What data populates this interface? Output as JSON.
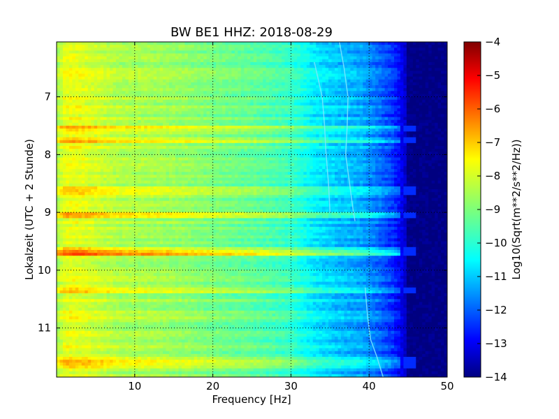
{
  "chart_data": {
    "type": "heatmap",
    "title": "BW BE1 HHZ: 2018-08-29",
    "xlabel": "Frequency [Hz]",
    "ylabel": "Lokalzeit (UTC + 2 Stunde)",
    "xlim": [
      0,
      50
    ],
    "ylim": [
      11.85,
      6.05
    ],
    "y_inverted": true,
    "x_ticks": [
      10,
      20,
      30,
      40,
      50
    ],
    "y_ticks": [
      7,
      8,
      9,
      10,
      11
    ],
    "grid": true,
    "colormap": "jet",
    "colorbar": {
      "label": "Log10(Sqrt(m**2/s**2/Hz))",
      "range": [
        -14,
        -4
      ],
      "ticks": [
        -4,
        -5,
        -6,
        -7,
        -8,
        -9,
        -10,
        -11,
        -12,
        -13,
        -14
      ]
    },
    "profile": {
      "description_freq_hz": [
        0,
        1,
        2,
        4,
        8,
        12,
        16,
        20,
        25,
        30,
        33,
        36,
        39,
        41,
        43,
        44.5,
        45,
        50
      ],
      "log10_amplitude": [
        -8.5,
        -7.8,
        -7.7,
        -7.9,
        -8.4,
        -8.5,
        -8.7,
        -9.0,
        -9.3,
        -9.8,
        -10.6,
        -11.0,
        -11.3,
        -11.8,
        -12.4,
        -13.2,
        -14.0,
        -14.0
      ]
    },
    "strong_rows_hours": [
      9.6,
      9.65,
      9.7,
      10.3,
      9.0,
      8.6,
      7.7,
      7.5,
      11.5,
      11.6
    ],
    "spectral_lines": [
      {
        "name": "line-a",
        "hours": [
          6.05,
          6.5,
          7.0,
          7.5,
          8.0,
          8.5,
          9.0,
          9.15
        ],
        "freq_hz": [
          36.2,
          36.8,
          37.3,
          37.2,
          37.0,
          37.5,
          38.0,
          38.2
        ]
      },
      {
        "name": "line-b",
        "hours": [
          6.4,
          7.0,
          7.5,
          8.0,
          8.5,
          9.0
        ],
        "freq_hz": [
          33.0,
          34.0,
          34.3,
          34.5,
          34.8,
          35.0
        ]
      },
      {
        "name": "line-c",
        "hours": [
          10.3,
          10.8,
          11.2,
          11.5,
          11.85
        ],
        "freq_hz": [
          39.5,
          39.8,
          40.2,
          41.0,
          41.8
        ]
      }
    ]
  }
}
